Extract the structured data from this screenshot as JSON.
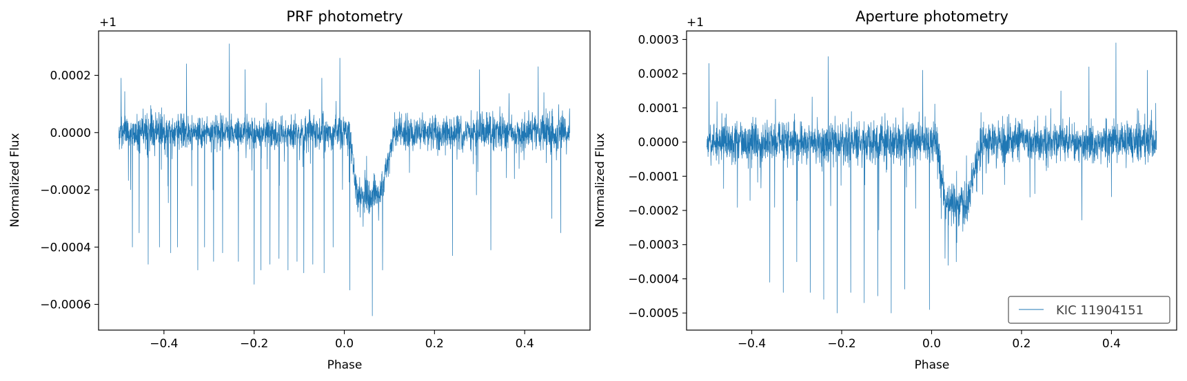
{
  "colors": {
    "series": "#1f77b4",
    "axes": "#000000",
    "legend_border": "#555555"
  },
  "chart_data": [
    {
      "type": "line",
      "title": "PRF photometry",
      "xlabel": "Phase",
      "ylabel": "Normalized Flux",
      "offset_text": "+1",
      "xlim": [
        -0.5,
        0.5
      ],
      "ylim": [
        -0.00069,
        0.000355
      ],
      "xticks": [
        -0.4,
        -0.2,
        0.0,
        0.2,
        0.4
      ],
      "xtick_labels": [
        "−0.4",
        "−0.2",
        "0.0",
        "0.2",
        "0.4"
      ],
      "yticks": [
        -0.0006,
        -0.0004,
        -0.0002,
        0.0,
        0.0002
      ],
      "ytick_labels": [
        "−0.0006",
        "−0.0004",
        "−0.0002",
        "0.0000",
        "0.0002"
      ],
      "grid": false,
      "legend": null,
      "series": [
        {
          "phase_range": [
            -0.5,
            0.5
          ],
          "noise_sigma": 3e-05,
          "baseline": 0.0,
          "transit": {
            "start": 0.01,
            "ingress_end": 0.03,
            "egress_start": 0.08,
            "end": 0.11,
            "depth": 0.00022
          },
          "spikes": [
            {
              "x": -0.495,
              "y": -0.00045
            },
            {
              "x": -0.47,
              "y": -0.0004
            },
            {
              "x": -0.455,
              "y": -0.00035
            },
            {
              "x": -0.435,
              "y": -0.00046
            },
            {
              "x": -0.41,
              "y": -0.0004
            },
            {
              "x": -0.385,
              "y": -0.00042
            },
            {
              "x": -0.37,
              "y": -0.0004
            },
            {
              "x": -0.35,
              "y": -0.00043
            },
            {
              "x": -0.325,
              "y": -0.00048
            },
            {
              "x": -0.31,
              "y": -0.0004
            },
            {
              "x": -0.29,
              "y": -0.00045
            },
            {
              "x": -0.27,
              "y": -0.00042
            },
            {
              "x": -0.255,
              "y": -0.00046
            },
            {
              "x": -0.235,
              "y": -0.00045
            },
            {
              "x": -0.2,
              "y": -0.00053
            },
            {
              "x": -0.185,
              "y": -0.00048
            },
            {
              "x": -0.165,
              "y": -0.00046
            },
            {
              "x": -0.145,
              "y": -0.00044
            },
            {
              "x": -0.125,
              "y": -0.00048
            },
            {
              "x": -0.105,
              "y": -0.00045
            },
            {
              "x": -0.09,
              "y": -0.00049
            },
            {
              "x": -0.07,
              "y": -0.00046
            },
            {
              "x": -0.045,
              "y": -0.00049
            },
            {
              "x": -0.025,
              "y": -0.0004
            },
            {
              "x": 0.012,
              "y": -0.00055
            },
            {
              "x": 0.062,
              "y": -0.00064
            },
            {
              "x": 0.085,
              "y": -0.00048
            },
            {
              "x": 0.24,
              "y": -0.00043
            },
            {
              "x": 0.325,
              "y": -0.00041
            },
            {
              "x": 0.46,
              "y": -0.0003
            },
            {
              "x": 0.48,
              "y": -0.00035
            },
            {
              "x": -0.255,
              "y": 0.00031
            },
            {
              "x": -0.495,
              "y": 0.00019
            },
            {
              "x": -0.05,
              "y": 0.00019
            },
            {
              "x": -0.01,
              "y": 0.00026
            },
            {
              "x": -0.22,
              "y": 0.00022
            },
            {
              "x": -0.35,
              "y": 0.00024
            },
            {
              "x": 0.43,
              "y": 0.00023
            },
            {
              "x": 0.3,
              "y": 0.00022
            }
          ]
        }
      ]
    },
    {
      "type": "line",
      "title": "Aperture photometry",
      "xlabel": "Phase",
      "ylabel": "Normalized Flux",
      "offset_text": "+1",
      "xlim": [
        -0.5,
        0.5
      ],
      "ylim": [
        -0.00055,
        0.000325
      ],
      "xticks": [
        -0.4,
        -0.2,
        0.0,
        0.2,
        0.4
      ],
      "xtick_labels": [
        "−0.4",
        "−0.2",
        "0.0",
        "0.2",
        "0.4"
      ],
      "yticks": [
        -0.0005,
        -0.0004,
        -0.0003,
        -0.0002,
        -0.0001,
        0.0,
        0.0001,
        0.0002,
        0.0003
      ],
      "ytick_labels": [
        "−0.0005",
        "−0.0004",
        "−0.0003",
        "−0.0002",
        "−0.0001",
        "0.0000",
        "0.0001",
        "0.0002",
        "0.0003"
      ],
      "grid": false,
      "legend": {
        "entries": [
          "KIC 11904151"
        ],
        "placement": "lower right"
      },
      "series": [
        {
          "name": "KIC 11904151",
          "phase_range": [
            -0.5,
            0.5
          ],
          "noise_sigma": 3e-05,
          "baseline": 0.0,
          "transit": {
            "start": 0.01,
            "ingress_end": 0.03,
            "egress_start": 0.08,
            "end": 0.11,
            "depth": 0.00018
          },
          "spikes": [
            {
              "x": -0.495,
              "y": -0.00011
            },
            {
              "x": -0.36,
              "y": -0.00041
            },
            {
              "x": -0.33,
              "y": -0.00044
            },
            {
              "x": -0.3,
              "y": -0.00035
            },
            {
              "x": -0.27,
              "y": -0.00044
            },
            {
              "x": -0.24,
              "y": -0.00046
            },
            {
              "x": -0.21,
              "y": -0.0005
            },
            {
              "x": -0.18,
              "y": -0.00044
            },
            {
              "x": -0.15,
              "y": -0.00047
            },
            {
              "x": -0.12,
              "y": -0.00045
            },
            {
              "x": -0.09,
              "y": -0.0005
            },
            {
              "x": -0.06,
              "y": -0.00043
            },
            {
              "x": -0.005,
              "y": -0.00049
            },
            {
              "x": 0.03,
              "y": -0.00034
            },
            {
              "x": 0.055,
              "y": -0.00035
            },
            {
              "x": 0.4,
              "y": -0.00016
            },
            {
              "x": 0.41,
              "y": 0.00029
            },
            {
              "x": -0.23,
              "y": 0.00025
            },
            {
              "x": -0.495,
              "y": 0.00023
            },
            {
              "x": -0.02,
              "y": 0.00021
            },
            {
              "x": 0.35,
              "y": 0.00022
            },
            {
              "x": 0.48,
              "y": 0.00021
            }
          ]
        }
      ]
    }
  ]
}
